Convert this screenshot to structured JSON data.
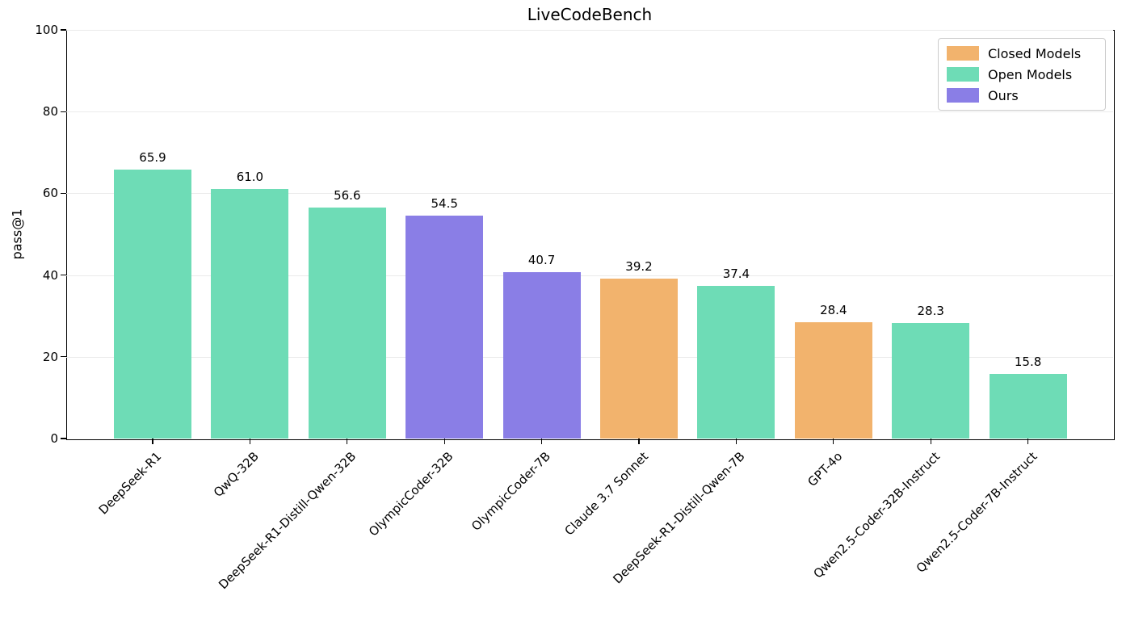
{
  "page": {
    "background": "#ffffff"
  },
  "chart_data": {
    "type": "bar",
    "title": "LiveCodeBench",
    "xlabel": "",
    "ylabel": "pass@1",
    "ylim": [
      0,
      100
    ],
    "yticks": [
      0,
      20,
      40,
      60,
      80,
      100
    ],
    "grid": "horizontal-light",
    "gridline_color": "#ebebeb",
    "legend": {
      "position": "upper-right",
      "entries": [
        {
          "key": "closed",
          "label": "Closed Models",
          "color": "#F2B36D"
        },
        {
          "key": "open",
          "label": "Open Models",
          "color": "#6EDCB6"
        },
        {
          "key": "ours",
          "label": "Ours",
          "color": "#8A7EE6"
        }
      ]
    },
    "bars": [
      {
        "category": "DeepSeek-R1",
        "value": 65.9,
        "group": "open"
      },
      {
        "category": "QwQ-32B",
        "value": 61.0,
        "group": "open"
      },
      {
        "category": "DeepSeek-R1-Distill-Qwen-32B",
        "value": 56.6,
        "group": "open"
      },
      {
        "category": "OlympicCoder-32B",
        "value": 54.5,
        "group": "ours"
      },
      {
        "category": "OlympicCoder-7B",
        "value": 40.7,
        "group": "ours"
      },
      {
        "category": "Claude 3.7 Sonnet",
        "value": 39.2,
        "group": "closed"
      },
      {
        "category": "DeepSeek-R1-Distill-Qwen-7B",
        "value": 37.4,
        "group": "open"
      },
      {
        "category": "GPT-4o",
        "value": 28.4,
        "group": "closed"
      },
      {
        "category": "Qwen2.5-Coder-32B-Instruct",
        "value": 28.3,
        "group": "open"
      },
      {
        "category": "Qwen2.5-Coder-7B-Instruct",
        "value": 15.8,
        "group": "open"
      }
    ]
  }
}
